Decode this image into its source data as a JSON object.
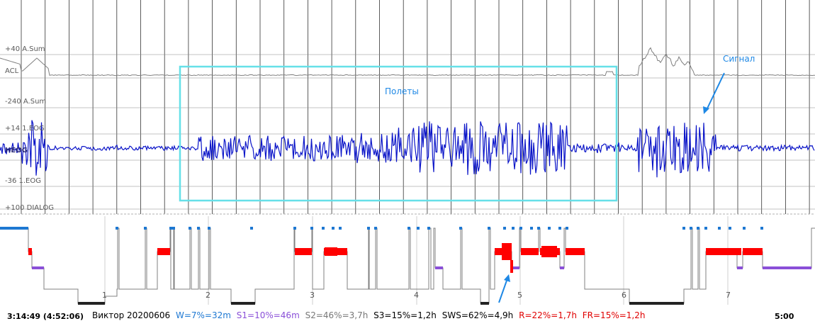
{
  "channels": [
    {
      "id": "asum-top",
      "label": "+40 A.Sum"
    },
    {
      "id": "acl",
      "label": "ACL"
    },
    {
      "id": "asum-bottom",
      "label": "-240 A.Sum"
    },
    {
      "id": "eog-top",
      "label": "+14 1.EOG"
    },
    {
      "id": "heog",
      "label": "HEOG"
    },
    {
      "id": "eog-bottom",
      "label": "-36 1.EOG"
    },
    {
      "id": "dialog",
      "label": "+100 DIALOG"
    }
  ],
  "annotations": {
    "flights": "Полеты",
    "signal": "Сигнал"
  },
  "colors": {
    "signal_trace": "#0a14c8",
    "activity_trace": "#808080",
    "highlight_box": "#66e0e8",
    "annotation": "#1e88e5",
    "rem": "#ff0000",
    "wake": "#1e78d2",
    "s1": "#8a4fd8",
    "sws": "#222222",
    "hypno_line": "#808080"
  },
  "hypnogram": {
    "cycles": [
      "1",
      "2",
      "3",
      "4",
      "5",
      "6",
      "7"
    ]
  },
  "status": {
    "time_left": "3:14:49 (4:52:06)",
    "name": "Виктор 20200606",
    "w": "W=7%=32m",
    "s1": "S1=10%=46m",
    "s2": "S2=46%=3,7h",
    "s3": "S3=15%=1,2h",
    "sws": "SWS=62%=4,9h",
    "r": "R=22%=1,7h",
    "fr": "FR=15%=1,2h",
    "time_right": "5:00"
  }
}
